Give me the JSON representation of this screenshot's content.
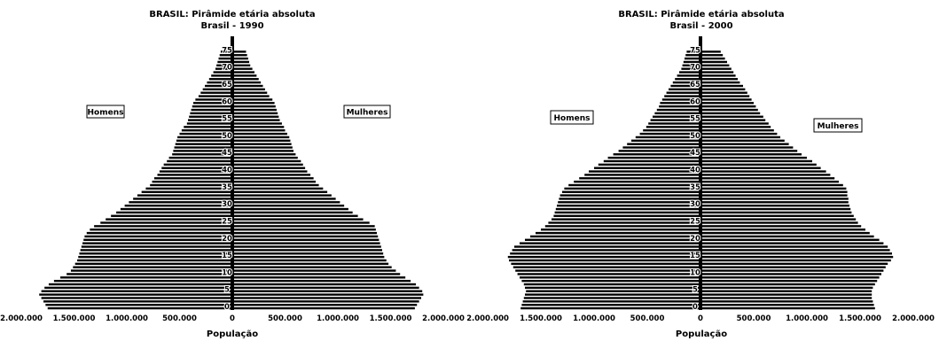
{
  "chart_data": [
    {
      "type": "bar",
      "orientation": "population-pyramid",
      "title": "BRASIL: Pirâmide etária absoluta",
      "subtitle": "Brasil - 1990",
      "xlabel": "População",
      "x_ticks": [
        "2.000.000",
        "1.500.000",
        "1.000.000",
        "500.000",
        "0",
        "500.000",
        "1.000.000",
        "1.500.000",
        "2.000.000"
      ],
      "y_ticks": [
        "0",
        "5",
        "10",
        "15",
        "20",
        "25",
        "30",
        "35",
        "40",
        "45",
        "50",
        "55",
        "60",
        "65",
        "70",
        "75"
      ],
      "xlim": [
        -2000000,
        2000000
      ],
      "ylim": [
        0,
        80
      ],
      "series": [
        {
          "name": "Homens",
          "values": [
            1750000,
            1770000,
            1790000,
            1810000,
            1830000,
            1810000,
            1780000,
            1740000,
            1690000,
            1630000,
            1570000,
            1530000,
            1510000,
            1490000,
            1470000,
            1460000,
            1450000,
            1440000,
            1430000,
            1420000,
            1410000,
            1400000,
            1380000,
            1350000,
            1310000,
            1250000,
            1200000,
            1150000,
            1100000,
            1060000,
            1020000,
            980000,
            940000,
            900000,
            860000,
            820000,
            780000,
            760000,
            740000,
            710000,
            690000,
            670000,
            650000,
            620000,
            600000,
            570000,
            560000,
            550000,
            540000,
            530000,
            520000,
            500000,
            480000,
            460000,
            430000,
            420000,
            410000,
            400000,
            390000,
            380000,
            370000,
            350000,
            320000,
            300000,
            280000,
            260000,
            240000,
            220000,
            200000,
            180000,
            160000,
            150000,
            140000,
            130000,
            120000,
            110000
          ]
        },
        {
          "name": "Mulheres",
          "values": [
            1730000,
            1750000,
            1770000,
            1790000,
            1810000,
            1800000,
            1770000,
            1740000,
            1690000,
            1640000,
            1590000,
            1550000,
            1510000,
            1480000,
            1460000,
            1440000,
            1430000,
            1420000,
            1410000,
            1400000,
            1390000,
            1380000,
            1370000,
            1360000,
            1350000,
            1300000,
            1240000,
            1190000,
            1140000,
            1100000,
            1060000,
            1020000,
            980000,
            940000,
            900000,
            860000,
            820000,
            790000,
            770000,
            740000,
            710000,
            690000,
            670000,
            650000,
            620000,
            600000,
            580000,
            570000,
            560000,
            550000,
            540000,
            520000,
            500000,
            490000,
            470000,
            450000,
            440000,
            430000,
            420000,
            410000,
            400000,
            380000,
            350000,
            330000,
            310000,
            290000,
            270000,
            250000,
            230000,
            210000,
            190000,
            170000,
            160000,
            150000,
            140000,
            130000
          ]
        }
      ],
      "labels": {
        "left": "Homens",
        "right": "Mulheres"
      }
    },
    {
      "type": "bar",
      "orientation": "population-pyramid",
      "title": "BRASIL: Pirâmide etária absoluta",
      "subtitle": "Brasil - 2000",
      "xlabel": "População",
      "x_ticks": [
        "2.000.000",
        "1.500.000",
        "1.000.000",
        "500.000",
        "0",
        "500.000",
        "1.000.000",
        "1.500.000",
        "2.000.000"
      ],
      "y_ticks": [
        "0",
        "5",
        "10",
        "15",
        "20",
        "25",
        "30",
        "35",
        "40",
        "45",
        "50",
        "55",
        "60",
        "65",
        "70",
        "75"
      ],
      "xlim": [
        -2000000,
        2000000
      ],
      "ylim": [
        0,
        80
      ],
      "series": [
        {
          "name": "Homens",
          "values": [
            1690000,
            1680000,
            1670000,
            1660000,
            1650000,
            1640000,
            1650000,
            1660000,
            1680000,
            1700000,
            1720000,
            1740000,
            1760000,
            1780000,
            1800000,
            1810000,
            1790000,
            1770000,
            1750000,
            1700000,
            1650000,
            1600000,
            1550000,
            1500000,
            1460000,
            1430000,
            1400000,
            1380000,
            1370000,
            1360000,
            1350000,
            1340000,
            1330000,
            1320000,
            1300000,
            1280000,
            1240000,
            1190000,
            1140000,
            1090000,
            1050000,
            1000000,
            960000,
            910000,
            870000,
            820000,
            770000,
            730000,
            690000,
            650000,
            610000,
            570000,
            540000,
            510000,
            490000,
            470000,
            450000,
            430000,
            410000,
            390000,
            380000,
            360000,
            340000,
            320000,
            300000,
            280000,
            260000,
            240000,
            220000,
            200000,
            180000,
            170000,
            160000,
            150000,
            140000,
            130000
          ]
        },
        {
          "name": "Mulheres",
          "values": [
            1640000,
            1630000,
            1620000,
            1610000,
            1610000,
            1610000,
            1620000,
            1640000,
            1660000,
            1680000,
            1700000,
            1720000,
            1740000,
            1760000,
            1790000,
            1810000,
            1800000,
            1780000,
            1760000,
            1720000,
            1680000,
            1630000,
            1590000,
            1550000,
            1510000,
            1480000,
            1460000,
            1440000,
            1420000,
            1410000,
            1400000,
            1390000,
            1390000,
            1380000,
            1380000,
            1370000,
            1340000,
            1300000,
            1260000,
            1220000,
            1180000,
            1130000,
            1090000,
            1050000,
            1000000,
            950000,
            910000,
            870000,
            830000,
            790000,
            750000,
            720000,
            690000,
            660000,
            640000,
            610000,
            590000,
            560000,
            540000,
            520000,
            500000,
            480000,
            460000,
            440000,
            420000,
            400000,
            370000,
            350000,
            330000,
            310000,
            290000,
            270000,
            250000,
            230000,
            210000,
            190000
          ]
        }
      ],
      "labels": {
        "left": "Homens",
        "right": "Mulheres"
      }
    }
  ]
}
